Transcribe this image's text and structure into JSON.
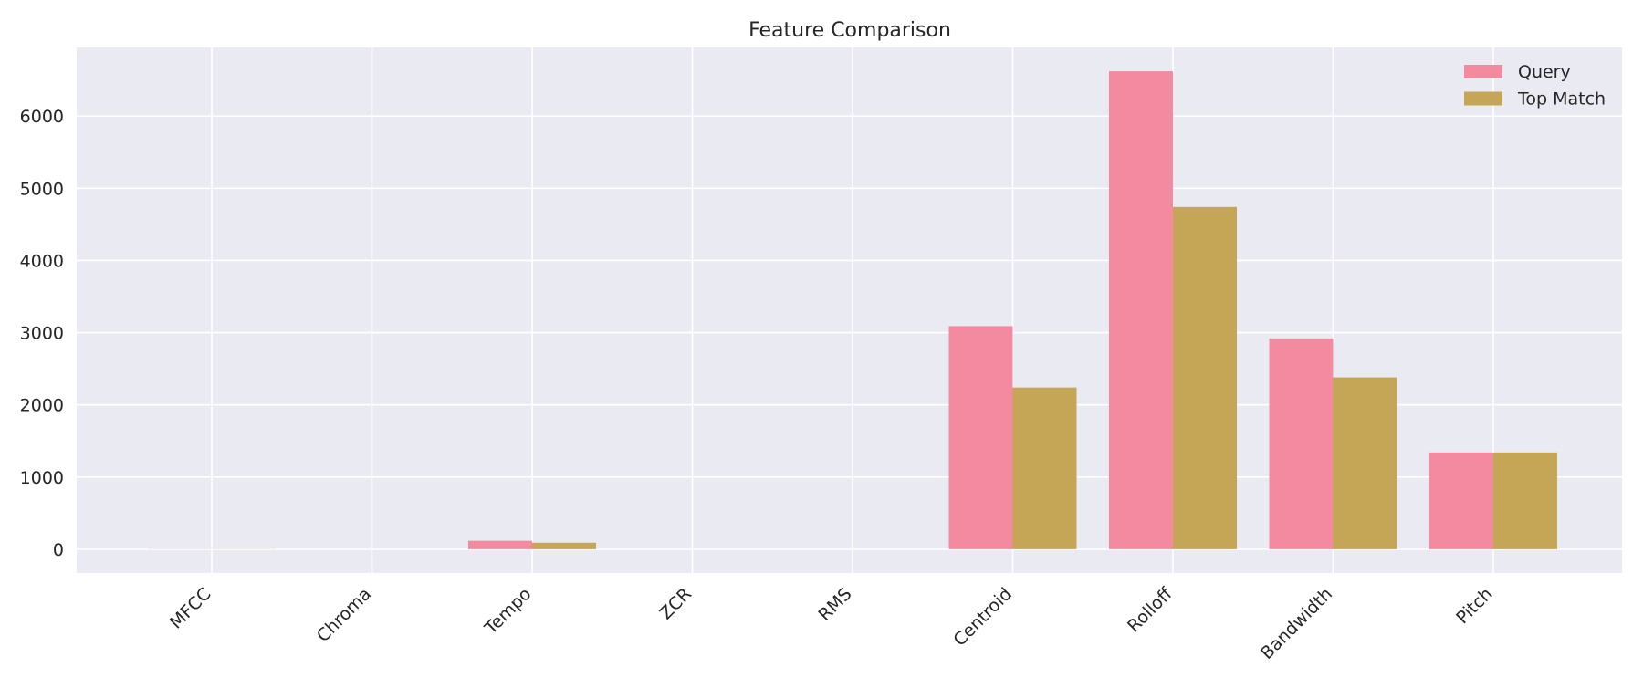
{
  "chart_data": {
    "type": "bar",
    "title": "Feature Comparison",
    "xlabel": "",
    "ylabel": "",
    "categories": [
      "MFCC",
      "Chroma",
      "Tempo",
      "ZCR",
      "RMS",
      "Centroid",
      "Rolloff",
      "Bandwidth",
      "Pitch"
    ],
    "series": [
      {
        "name": "Query",
        "values": [
          2,
          0.4,
          117,
          0.1,
          0.05,
          3090,
          6620,
          2920,
          1340
        ],
        "color": "#f38aa0"
      },
      {
        "name": "Top Match",
        "values": [
          2,
          0.4,
          90,
          0.1,
          0.05,
          2240,
          4740,
          2380,
          1340
        ],
        "color": "#c4a656"
      }
    ],
    "ylim": [
      -330,
      6950
    ],
    "yticks": [
      "0",
      "1000",
      "2000",
      "3000",
      "4000",
      "5000",
      "6000"
    ],
    "grid": true,
    "legend": "top-right",
    "background": "#eaeaf2"
  }
}
